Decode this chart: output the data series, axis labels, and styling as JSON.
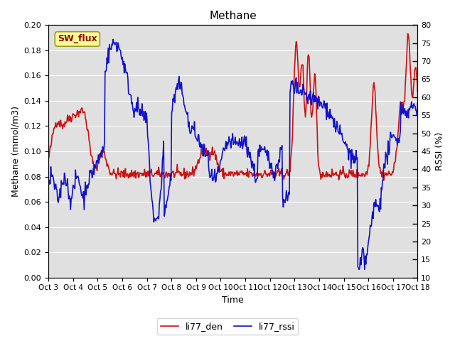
{
  "title": "Methane",
  "xlabel": "Time",
  "ylabel_left": "Methane (mmol/m3)",
  "ylabel_right": "RSSI (%)",
  "ylim_left": [
    0.0,
    0.2
  ],
  "ylim_right": [
    10,
    80
  ],
  "yticks_left": [
    0.0,
    0.02,
    0.04,
    0.06,
    0.08,
    0.1,
    0.12,
    0.14,
    0.16,
    0.18,
    0.2
  ],
  "yticks_right": [
    10,
    15,
    20,
    25,
    30,
    35,
    40,
    45,
    50,
    55,
    60,
    65,
    70,
    75,
    80
  ],
  "color_den": "#cc1111",
  "color_rssi": "#1111cc",
  "bg_color": "#e0e0e0",
  "legend_label_den": "li77_den",
  "legend_label_rssi": "li77_rssi",
  "sw_flux_label": "SW_flux",
  "sw_flux_bg": "#ffff99",
  "sw_flux_border": "#999922",
  "sw_flux_color": "#990000",
  "x_tick_labels": [
    "Oct 3",
    "Oct 4",
    "Oct 5",
    "Oct 6",
    "Oct 7",
    "Oct 8",
    "Oct 9",
    "Oct 10",
    "Oct 11",
    "Oct 12",
    "Oct 13",
    "Oct 14",
    "Oct 15",
    "Oct 16",
    "Oct 17",
    "Oct 18"
  ],
  "n_points": 600,
  "seed": 42,
  "linewidth": 1.2
}
